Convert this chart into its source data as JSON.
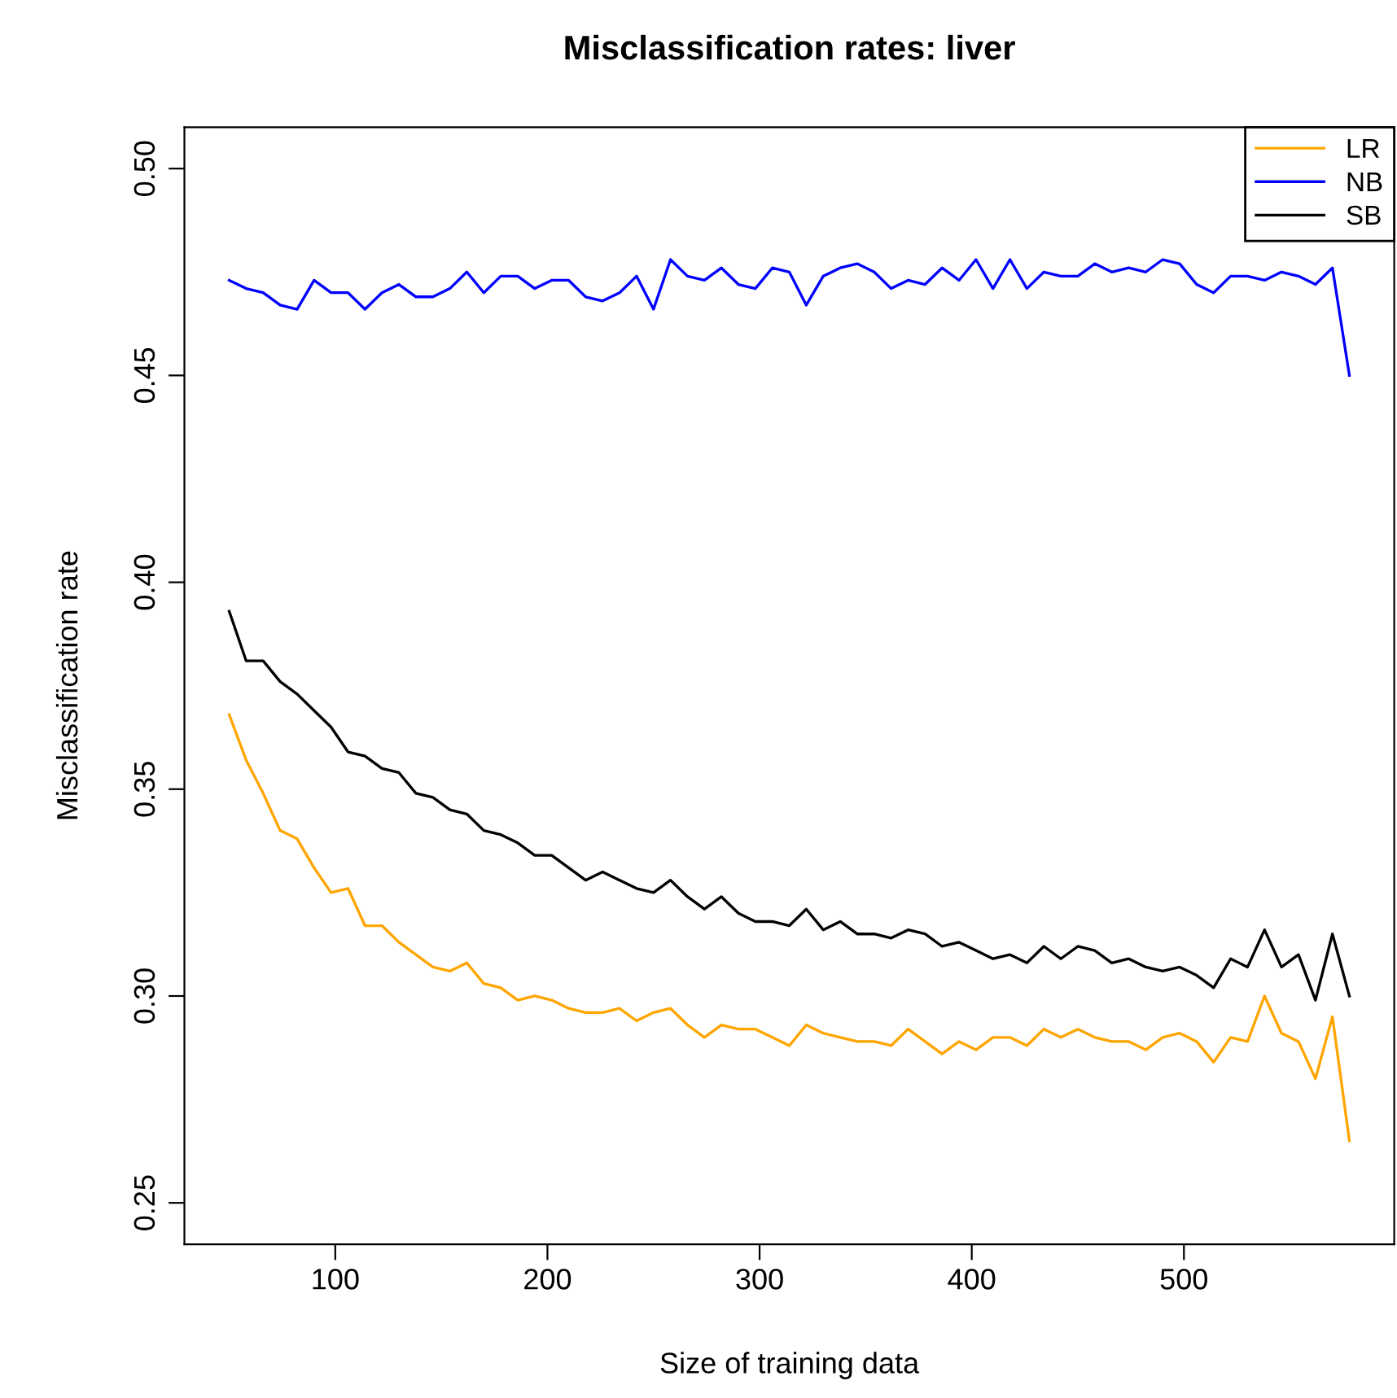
{
  "chart_data": {
    "type": "line",
    "title": "Misclassification rates: liver",
    "xlabel": "Size of training data",
    "ylabel": "Misclassification rate",
    "x": [
      50,
      58,
      66,
      74,
      82,
      90,
      98,
      106,
      114,
      122,
      130,
      138,
      146,
      154,
      162,
      170,
      178,
      186,
      194,
      202,
      210,
      218,
      226,
      234,
      242,
      250,
      258,
      266,
      274,
      282,
      290,
      298,
      306,
      314,
      322,
      330,
      338,
      346,
      354,
      362,
      370,
      378,
      386,
      394,
      402,
      410,
      418,
      426,
      434,
      442,
      450,
      458,
      466,
      474,
      482,
      490,
      498,
      506,
      514,
      522,
      530,
      538,
      546,
      554,
      562,
      570,
      578
    ],
    "series": [
      {
        "name": "LR",
        "color": "#ffa500",
        "values": [
          0.368,
          0.357,
          0.349,
          0.34,
          0.338,
          0.331,
          0.325,
          0.326,
          0.317,
          0.317,
          0.313,
          0.31,
          0.307,
          0.306,
          0.308,
          0.303,
          0.302,
          0.299,
          0.3,
          0.299,
          0.297,
          0.296,
          0.296,
          0.297,
          0.294,
          0.296,
          0.297,
          0.293,
          0.29,
          0.293,
          0.292,
          0.292,
          0.29,
          0.288,
          0.293,
          0.291,
          0.29,
          0.289,
          0.289,
          0.288,
          0.292,
          0.289,
          0.286,
          0.289,
          0.287,
          0.29,
          0.29,
          0.288,
          0.292,
          0.29,
          0.292,
          0.29,
          0.289,
          0.289,
          0.287,
          0.29,
          0.291,
          0.289,
          0.284,
          0.29,
          0.289,
          0.3,
          0.291,
          0.289,
          0.28,
          0.295,
          0.265
        ]
      },
      {
        "name": "NB",
        "color": "#0000ff",
        "values": [
          0.473,
          0.471,
          0.47,
          0.467,
          0.466,
          0.473,
          0.47,
          0.47,
          0.466,
          0.47,
          0.472,
          0.469,
          0.469,
          0.471,
          0.475,
          0.47,
          0.474,
          0.474,
          0.471,
          0.473,
          0.473,
          0.469,
          0.468,
          0.47,
          0.474,
          0.466,
          0.478,
          0.474,
          0.473,
          0.476,
          0.472,
          0.471,
          0.476,
          0.475,
          0.467,
          0.474,
          0.476,
          0.477,
          0.475,
          0.471,
          0.473,
          0.472,
          0.476,
          0.473,
          0.478,
          0.471,
          0.478,
          0.471,
          0.475,
          0.474,
          0.474,
          0.477,
          0.475,
          0.476,
          0.475,
          0.478,
          0.477,
          0.472,
          0.47,
          0.474,
          0.474,
          0.473,
          0.475,
          0.474,
          0.472,
          0.476,
          0.45
        ]
      },
      {
        "name": "SB",
        "color": "#000000",
        "values": [
          0.393,
          0.381,
          0.381,
          0.376,
          0.373,
          0.369,
          0.365,
          0.359,
          0.358,
          0.355,
          0.354,
          0.349,
          0.348,
          0.345,
          0.344,
          0.34,
          0.339,
          0.337,
          0.334,
          0.334,
          0.331,
          0.328,
          0.33,
          0.328,
          0.326,
          0.325,
          0.328,
          0.324,
          0.321,
          0.324,
          0.32,
          0.318,
          0.318,
          0.317,
          0.321,
          0.316,
          0.318,
          0.315,
          0.315,
          0.314,
          0.316,
          0.315,
          0.312,
          0.313,
          0.311,
          0.309,
          0.31,
          0.308,
          0.312,
          0.309,
          0.312,
          0.311,
          0.308,
          0.309,
          0.307,
          0.306,
          0.307,
          0.305,
          0.302,
          0.309,
          0.307,
          0.316,
          0.307,
          0.31,
          0.299,
          0.315,
          0.3
        ]
      }
    ],
    "xlim": [
      28.88,
      599.12
    ],
    "ylim": [
      0.24,
      0.51
    ],
    "xticks": [
      100,
      200,
      300,
      400,
      500
    ],
    "yticks": [
      {
        "value": 0.25,
        "label": "0.25"
      },
      {
        "value": 0.3,
        "label": "0.30"
      },
      {
        "value": 0.35,
        "label": "0.35"
      },
      {
        "value": 0.4,
        "label": "0.40"
      },
      {
        "value": 0.45,
        "label": "0.45"
      },
      {
        "value": 0.5,
        "label": "0.50"
      }
    ],
    "legend": "top right",
    "grid": false,
    "marker": "none",
    "line_style": "solid"
  }
}
